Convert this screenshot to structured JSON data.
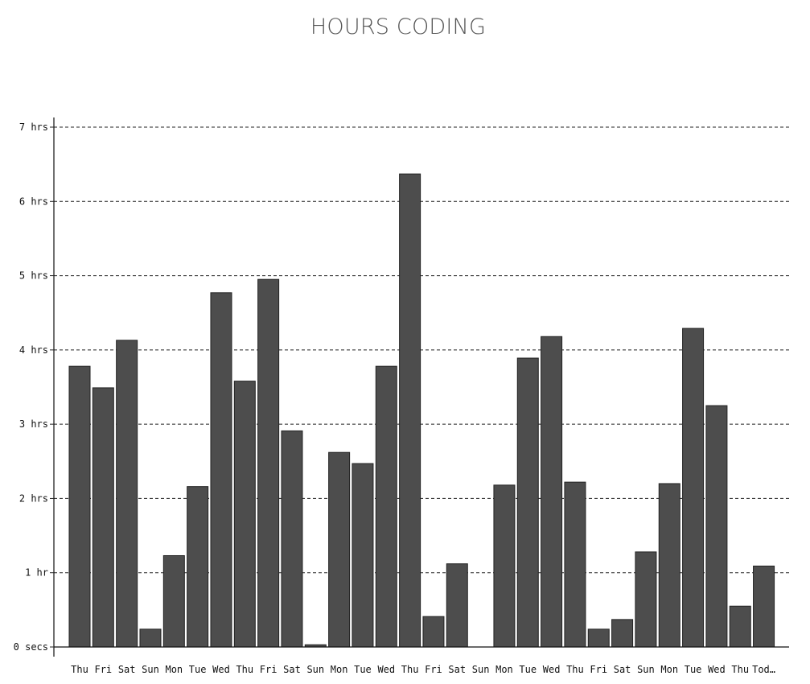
{
  "chart_data": {
    "type": "bar",
    "title": "HOURS CODING",
    "xlabel": "",
    "ylabel": "",
    "ylim": [
      0,
      7
    ],
    "grid": true,
    "y_ticks": [
      {
        "value": 0,
        "label": "0 secs"
      },
      {
        "value": 1,
        "label": "1 hr"
      },
      {
        "value": 2,
        "label": "2 hrs"
      },
      {
        "value": 3,
        "label": "3 hrs"
      },
      {
        "value": 4,
        "label": "4 hrs"
      },
      {
        "value": 5,
        "label": "5 hrs"
      },
      {
        "value": 6,
        "label": "6 hrs"
      },
      {
        "value": 7,
        "label": "7 hrs"
      }
    ],
    "categories": [
      "Thu",
      "Fri",
      "Sat",
      "Sun",
      "Mon",
      "Tue",
      "Wed",
      "Thu",
      "Fri",
      "Sat",
      "Sun",
      "Mon",
      "Tue",
      "Wed",
      "Thu",
      "Fri",
      "Sat",
      "Sun",
      "Mon",
      "Tue",
      "Wed",
      "Thu",
      "Fri",
      "Sat",
      "Sun",
      "Mon",
      "Tue",
      "Wed",
      "Thu",
      "Tod…"
    ],
    "values": [
      3.78,
      3.49,
      4.13,
      0.24,
      1.23,
      2.16,
      4.77,
      3.58,
      4.95,
      2.91,
      0.03,
      2.62,
      2.47,
      3.78,
      6.37,
      0.41,
      1.12,
      0,
      2.18,
      3.89,
      4.18,
      2.22,
      0.24,
      0.37,
      1.28,
      2.2,
      4.29,
      3.25,
      0.55,
      1.09
    ],
    "bar_color": "#4d4d4d",
    "bar_stroke": "#222222"
  }
}
